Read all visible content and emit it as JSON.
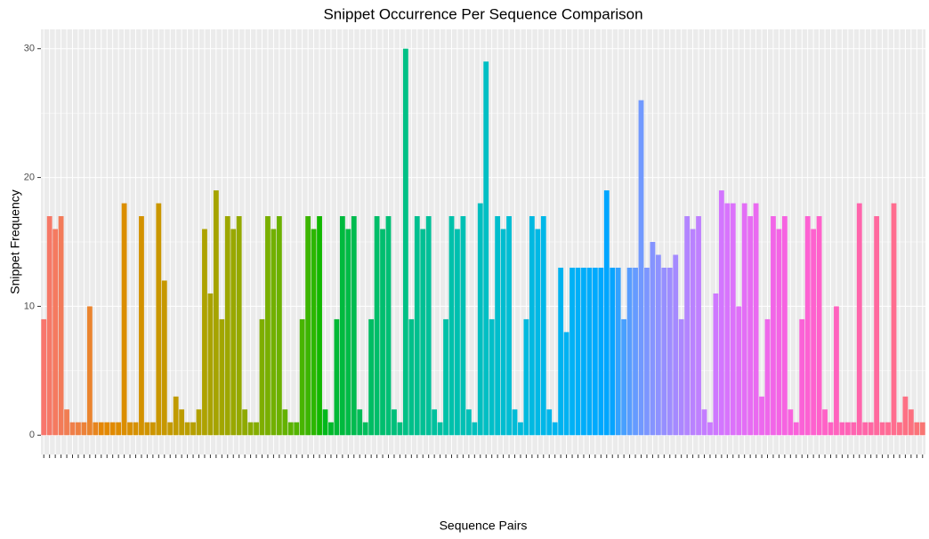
{
  "chart_data": {
    "type": "bar",
    "title": "Snippet Occurrence Per Sequence Comparison",
    "x_label": "Sequence Pairs",
    "y_label": "Snippet Frequency",
    "categories": [
      null,
      null,
      null,
      null,
      null,
      null,
      null,
      null,
      null,
      null,
      null,
      null,
      null,
      null,
      null,
      null,
      null,
      null,
      null,
      null,
      null,
      null,
      null,
      null,
      null,
      null,
      null,
      null,
      null,
      null,
      null,
      null,
      null,
      null,
      null,
      null,
      null,
      null,
      null,
      null,
      null,
      null,
      null,
      null,
      null,
      null,
      null,
      null,
      null,
      null,
      null,
      null,
      null,
      null,
      null,
      null,
      null,
      null,
      null,
      null,
      null,
      null,
      null,
      null,
      null,
      null,
      null,
      null,
      null,
      null,
      null,
      null,
      null,
      null,
      null,
      null,
      null,
      null,
      null,
      null,
      null,
      null,
      null,
      null,
      null,
      null,
      null,
      null,
      null,
      null,
      null,
      null,
      null,
      null,
      null,
      null,
      null,
      null,
      null,
      null,
      null,
      null,
      null,
      null,
      null,
      null,
      null,
      null,
      null,
      null,
      null,
      null,
      null,
      null,
      null,
      null,
      null,
      null,
      null,
      null,
      null,
      null,
      null,
      null,
      null,
      null,
      null,
      null,
      null,
      null,
      null,
      null,
      null,
      null,
      null,
      null,
      null,
      null,
      null,
      null,
      null,
      null,
      null,
      null,
      null,
      null,
      null,
      null,
      null,
      null,
      null,
      null,
      null,
      null
    ],
    "values": [
      9,
      17,
      16,
      17,
      2,
      1,
      1,
      1,
      10,
      1,
      1,
      1,
      1,
      1,
      18,
      1,
      1,
      17,
      1,
      1,
      18,
      12,
      1,
      3,
      2,
      1,
      1,
      2,
      16,
      11,
      19,
      9,
      17,
      16,
      17,
      2,
      1,
      1,
      9,
      17,
      16,
      17,
      2,
      1,
      1,
      9,
      17,
      16,
      17,
      2,
      1,
      9,
      17,
      16,
      17,
      2,
      1,
      9,
      17,
      16,
      17,
      2,
      1,
      30,
      9,
      17,
      16,
      17,
      2,
      1,
      9,
      17,
      16,
      17,
      2,
      1,
      18,
      29,
      9,
      17,
      16,
      17,
      2,
      1,
      9,
      17,
      16,
      17,
      2,
      1,
      13,
      8,
      13,
      13,
      13,
      13,
      13,
      13,
      19,
      13,
      13,
      9,
      13,
      13,
      26,
      13,
      15,
      14,
      13,
      13,
      14,
      9,
      17,
      16,
      17,
      2,
      1,
      11,
      19,
      18,
      18,
      10,
      18,
      17,
      18,
      3,
      9,
      17,
      16,
      17,
      2,
      1,
      9,
      17,
      16,
      17,
      2,
      1,
      10,
      1,
      1,
      1,
      18,
      1,
      1,
      17,
      1,
      1,
      18,
      1,
      3,
      2,
      1,
      1
    ],
    "ylim": [
      -1.5,
      31.5
    ],
    "yticks": [
      0,
      10,
      20,
      30
    ],
    "grid": true
  }
}
